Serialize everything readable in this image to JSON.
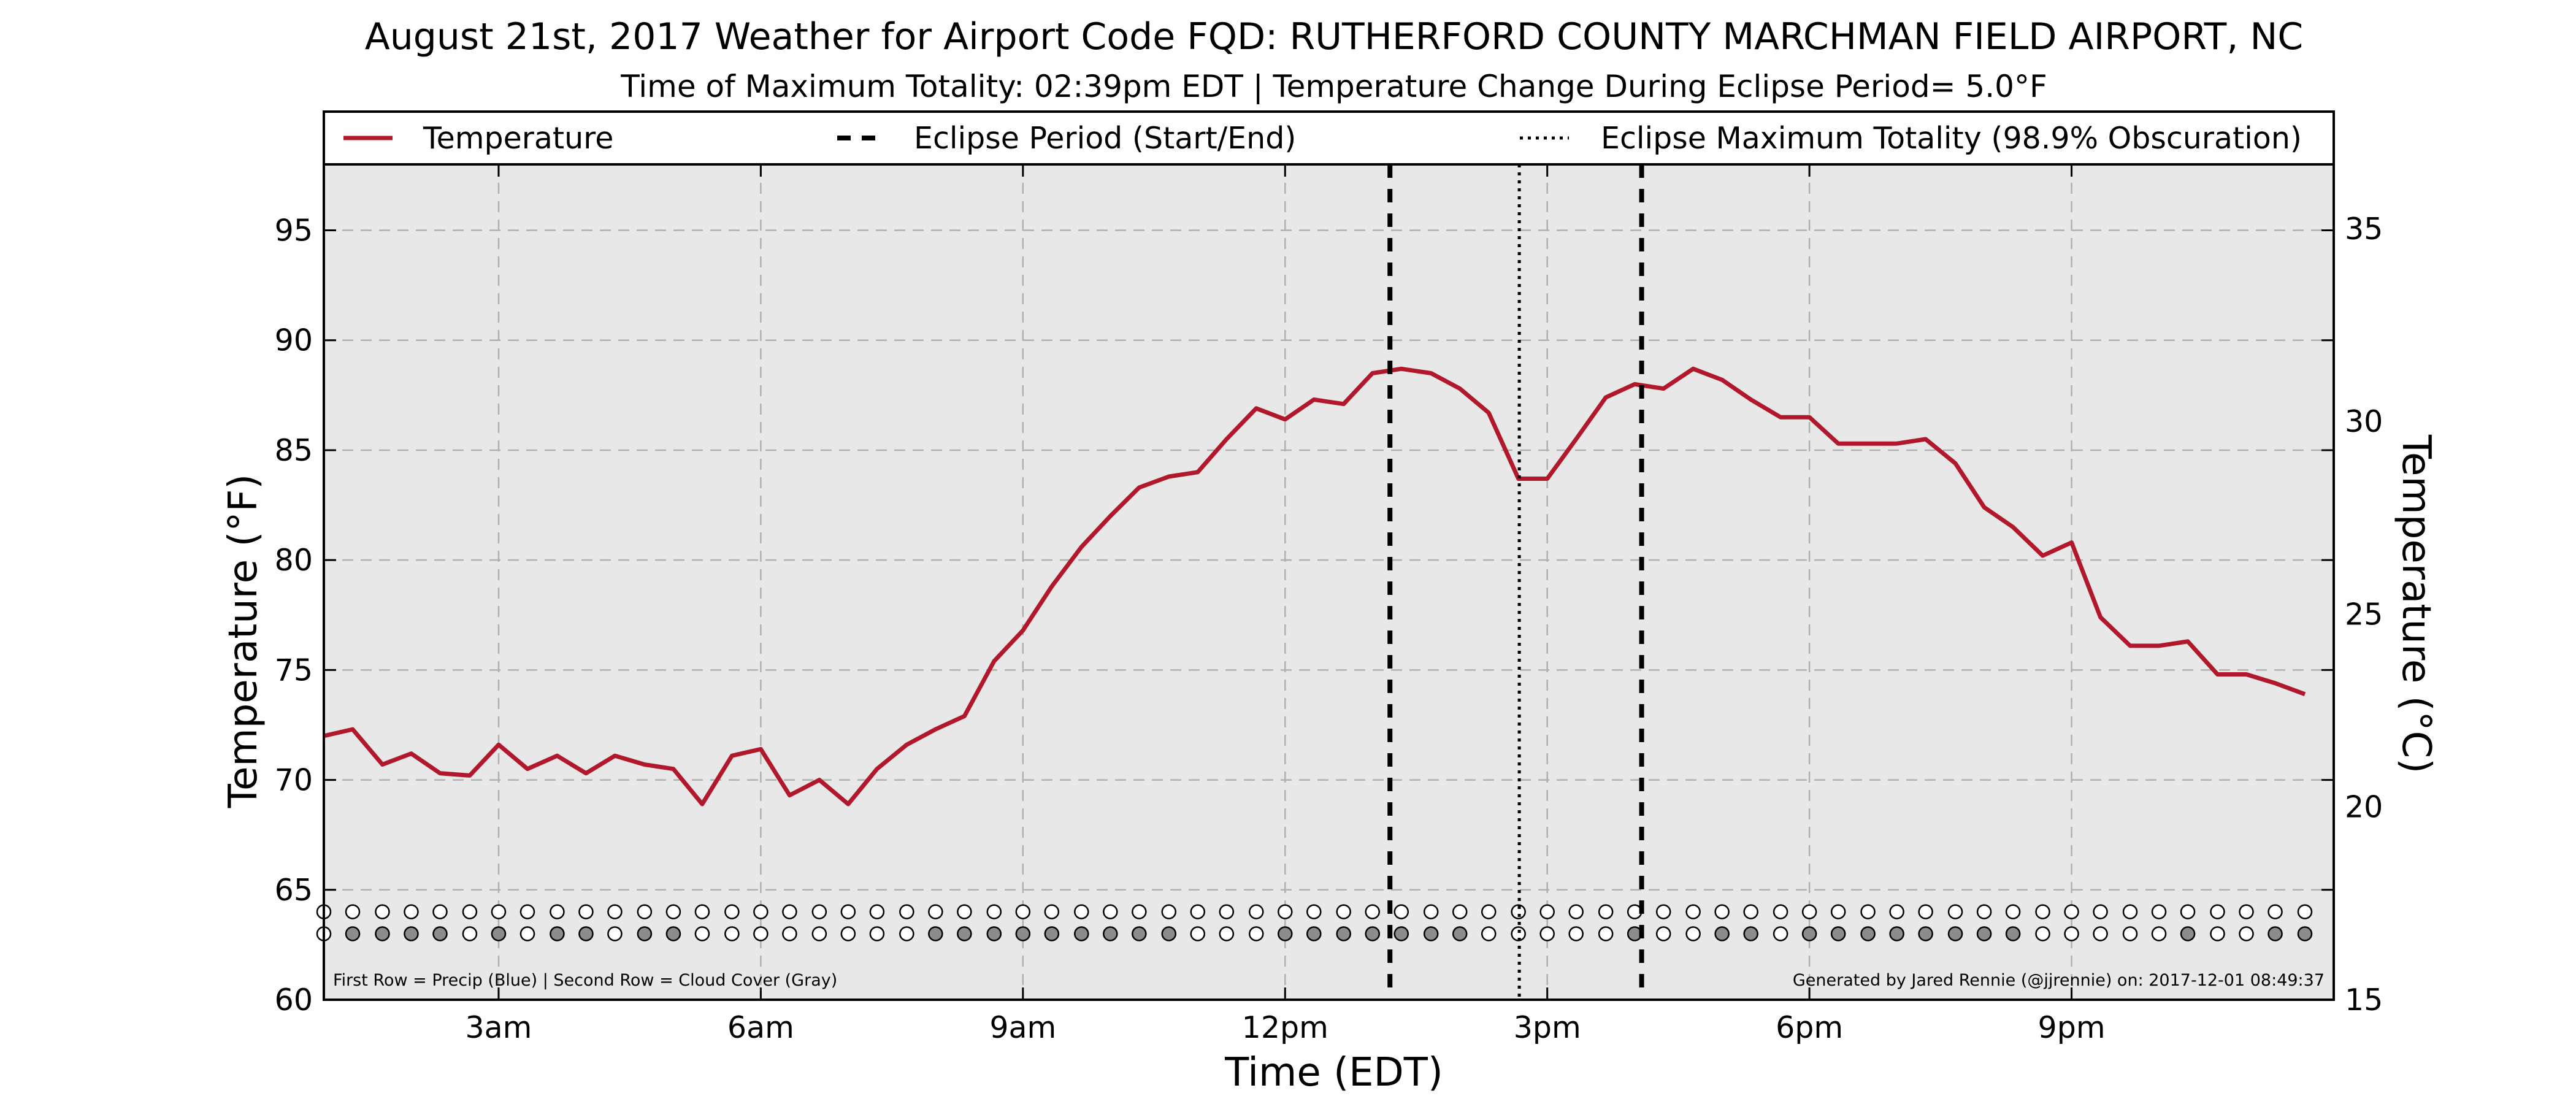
{
  "chart_data": {
    "type": "line",
    "title": "August 21st, 2017 Weather for Airport Code FQD: RUTHERFORD COUNTY MARCHMAN FIELD AIRPORT, NC",
    "subtitle": "Time of Maximum Totality: 02:39pm EDT | Temperature Change During Eclipse Period= 5.0°F",
    "xlabel": "Time (EDT)",
    "ylabel_left": "Temperature (°F)",
    "ylabel_right": "Temperature (°C)",
    "xlim": [
      1,
      24
    ],
    "ylim_left": [
      60,
      98
    ],
    "ylim_right": [
      15,
      36.67
    ],
    "x_ticks": [
      {
        "x": 3,
        "label": "3am"
      },
      {
        "x": 6,
        "label": "6am"
      },
      {
        "x": 9,
        "label": "9am"
      },
      {
        "x": 12,
        "label": "12pm"
      },
      {
        "x": 15,
        "label": "3pm"
      },
      {
        "x": 18,
        "label": "6pm"
      },
      {
        "x": 21,
        "label": "9pm"
      }
    ],
    "y_ticks_left": [
      {
        "v": 60,
        "label": "60"
      },
      {
        "v": 65,
        "label": "65"
      },
      {
        "v": 70,
        "label": "70"
      },
      {
        "v": 75,
        "label": "75"
      },
      {
        "v": 80,
        "label": "80"
      },
      {
        "v": 85,
        "label": "85"
      },
      {
        "v": 90,
        "label": "90"
      },
      {
        "v": 95,
        "label": "95"
      }
    ],
    "y_ticks_right": [
      {
        "v": 15,
        "label": "15"
      },
      {
        "v": 20,
        "label": "20"
      },
      {
        "v": 25,
        "label": "25"
      },
      {
        "v": 30,
        "label": "30"
      },
      {
        "v": 35,
        "label": "35"
      }
    ],
    "grid": true,
    "legend_position": "top",
    "colors": {
      "temperature": "#b2182b",
      "plot_bg": "#e8e8e8",
      "grid": "#b0b0b0",
      "cloud": "#8c8c8c",
      "clear": "#ffffff"
    },
    "series": [
      {
        "name": "Temperature",
        "x": [
          1.0,
          1.33,
          1.67,
          2.0,
          2.33,
          2.67,
          3.0,
          3.33,
          3.67,
          4.0,
          4.33,
          4.67,
          5.0,
          5.33,
          5.67,
          6.0,
          6.33,
          6.67,
          7.0,
          7.33,
          7.67,
          8.0,
          8.33,
          8.67,
          9.0,
          9.33,
          9.67,
          10.0,
          10.33,
          10.67,
          11.0,
          11.33,
          11.67,
          12.0,
          12.33,
          12.67,
          13.0,
          13.33,
          13.67,
          14.0,
          14.33,
          14.67,
          15.0,
          15.33,
          15.67,
          16.0,
          16.33,
          16.67,
          17.0,
          17.33,
          17.67,
          18.0,
          18.33,
          18.67,
          19.0,
          19.33,
          19.67,
          20.0,
          20.33,
          20.67,
          21.0,
          21.33,
          21.67,
          22.0,
          22.33,
          22.67,
          23.0,
          23.33,
          23.67
        ],
        "values": [
          72.0,
          72.3,
          70.7,
          71.2,
          70.3,
          70.2,
          71.6,
          70.5,
          71.1,
          70.3,
          71.1,
          70.7,
          70.5,
          68.9,
          71.1,
          71.4,
          69.3,
          70.0,
          68.9,
          70.5,
          71.6,
          72.3,
          72.9,
          75.4,
          76.8,
          78.8,
          80.6,
          82.0,
          83.3,
          83.8,
          84.0,
          85.5,
          86.9,
          86.4,
          87.3,
          87.1,
          88.5,
          88.7,
          88.5,
          87.8,
          86.7,
          83.7,
          83.7,
          85.5,
          87.4,
          88.0,
          87.8,
          88.7,
          88.2,
          87.3,
          86.5,
          86.5,
          85.3,
          85.3,
          85.3,
          85.5,
          84.4,
          82.4,
          81.5,
          80.2,
          80.8,
          77.4,
          76.1,
          76.1,
          76.3,
          74.8,
          74.8,
          74.4,
          73.9
        ]
      }
    ],
    "eclipse": {
      "legend_label": "Eclipse Period (Start/End)",
      "start_x": 13.2,
      "end_x": 16.08
    },
    "totality": {
      "legend_label": "Eclipse Maximum Totality (98.9% Obscuration)",
      "x": 14.68
    },
    "precip_row": {
      "y": 64,
      "x": [
        1.0,
        1.33,
        1.67,
        2.0,
        2.33,
        2.67,
        3.0,
        3.33,
        3.67,
        4.0,
        4.33,
        4.67,
        5.0,
        5.33,
        5.67,
        6.0,
        6.33,
        6.67,
        7.0,
        7.33,
        7.67,
        8.0,
        8.33,
        8.67,
        9.0,
        9.33,
        9.67,
        10.0,
        10.33,
        10.67,
        11.0,
        11.33,
        11.67,
        12.0,
        12.33,
        12.67,
        13.0,
        13.33,
        13.67,
        14.0,
        14.33,
        14.67,
        15.0,
        15.33,
        15.67,
        16.0,
        16.33,
        16.67,
        17.0,
        17.33,
        17.67,
        18.0,
        18.33,
        18.67,
        19.0,
        19.33,
        19.67,
        20.0,
        20.33,
        20.67,
        21.0,
        21.33,
        21.67,
        22.0,
        22.33,
        22.67,
        23.0,
        23.33,
        23.67
      ],
      "filled": [
        0,
        0,
        0,
        0,
        0,
        0,
        0,
        0,
        0,
        0,
        0,
        0,
        0,
        0,
        0,
        0,
        0,
        0,
        0,
        0,
        0,
        0,
        0,
        0,
        0,
        0,
        0,
        0,
        0,
        0,
        0,
        0,
        0,
        0,
        0,
        0,
        0,
        0,
        0,
        0,
        0,
        0,
        0,
        0,
        0,
        0,
        0,
        0,
        0,
        0,
        0,
        0,
        0,
        0,
        0,
        0,
        0,
        0,
        0,
        0,
        0,
        0,
        0,
        0,
        0,
        0,
        0,
        0,
        0
      ]
    },
    "cloud_row": {
      "y": 63,
      "x": [
        1.0,
        1.33,
        1.67,
        2.0,
        2.33,
        2.67,
        3.0,
        3.33,
        3.67,
        4.0,
        4.33,
        4.67,
        5.0,
        5.33,
        5.67,
        6.0,
        6.33,
        6.67,
        7.0,
        7.33,
        7.67,
        8.0,
        8.33,
        8.67,
        9.0,
        9.33,
        9.67,
        10.0,
        10.33,
        10.67,
        11.0,
        11.33,
        11.67,
        12.0,
        12.33,
        12.67,
        13.0,
        13.33,
        13.67,
        14.0,
        14.33,
        14.67,
        15.0,
        15.33,
        15.67,
        16.0,
        16.33,
        16.67,
        17.0,
        17.33,
        17.67,
        18.0,
        18.33,
        18.67,
        19.0,
        19.33,
        19.67,
        20.0,
        20.33,
        20.67,
        21.0,
        21.33,
        21.67,
        22.0,
        22.33,
        22.67,
        23.0,
        23.33,
        23.67
      ],
      "filled": [
        0,
        1,
        1,
        1,
        1,
        0,
        1,
        0,
        1,
        1,
        0,
        1,
        1,
        0,
        0,
        0,
        0,
        0,
        0,
        0,
        0,
        1,
        1,
        1,
        1,
        1,
        1,
        1,
        1,
        1,
        0,
        0,
        0,
        1,
        1,
        1,
        1,
        1,
        1,
        1,
        0,
        0,
        0,
        0,
        0,
        1,
        0,
        0,
        1,
        1,
        0,
        1,
        1,
        1,
        1,
        1,
        1,
        1,
        1,
        0,
        0,
        0,
        0,
        0,
        1,
        0,
        0,
        1,
        1
      ]
    },
    "legend": {
      "temperature_label": "Temperature"
    },
    "footer_left": "First Row = Precip (Blue) | Second Row = Cloud Cover (Gray)",
    "footer_right": "Generated by Jared Rennie (@jjrennie) on: 2017-12-01 08:49:37"
  }
}
